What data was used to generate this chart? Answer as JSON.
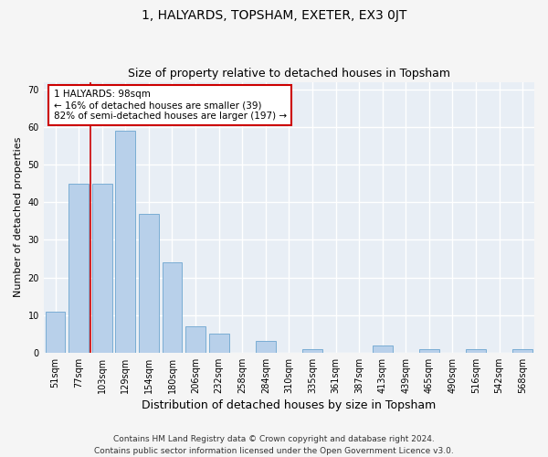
{
  "title1": "1, HALYARDS, TOPSHAM, EXETER, EX3 0JT",
  "title2": "Size of property relative to detached houses in Topsham",
  "xlabel": "Distribution of detached houses by size in Topsham",
  "ylabel": "Number of detached properties",
  "categories": [
    "51sqm",
    "77sqm",
    "103sqm",
    "129sqm",
    "154sqm",
    "180sqm",
    "206sqm",
    "232sqm",
    "258sqm",
    "284sqm",
    "310sqm",
    "335sqm",
    "361sqm",
    "387sqm",
    "413sqm",
    "439sqm",
    "465sqm",
    "490sqm",
    "516sqm",
    "542sqm",
    "568sqm"
  ],
  "values": [
    11,
    45,
    45,
    59,
    37,
    24,
    7,
    5,
    0,
    3,
    0,
    1,
    0,
    0,
    2,
    0,
    1,
    0,
    1,
    0,
    1
  ],
  "bar_color": "#b8d0ea",
  "bar_edge_color": "#7aadd4",
  "background_color": "#e8eef5",
  "grid_color": "#ffffff",
  "annotation_text": "1 HALYARDS: 98sqm\n← 16% of detached houses are smaller (39)\n82% of semi-detached houses are larger (197) →",
  "annotation_box_color": "#ffffff",
  "annotation_box_edge": "#cc0000",
  "vline_color": "#cc0000",
  "ylim": [
    0,
    72
  ],
  "yticks": [
    0,
    10,
    20,
    30,
    40,
    50,
    60,
    70
  ],
  "footnote": "Contains HM Land Registry data © Crown copyright and database right 2024.\nContains public sector information licensed under the Open Government Licence v3.0.",
  "title1_fontsize": 10,
  "title2_fontsize": 9,
  "xlabel_fontsize": 9,
  "ylabel_fontsize": 8,
  "tick_fontsize": 7,
  "annotation_fontsize": 7.5,
  "footnote_fontsize": 6.5,
  "fig_bg": "#f5f5f5"
}
